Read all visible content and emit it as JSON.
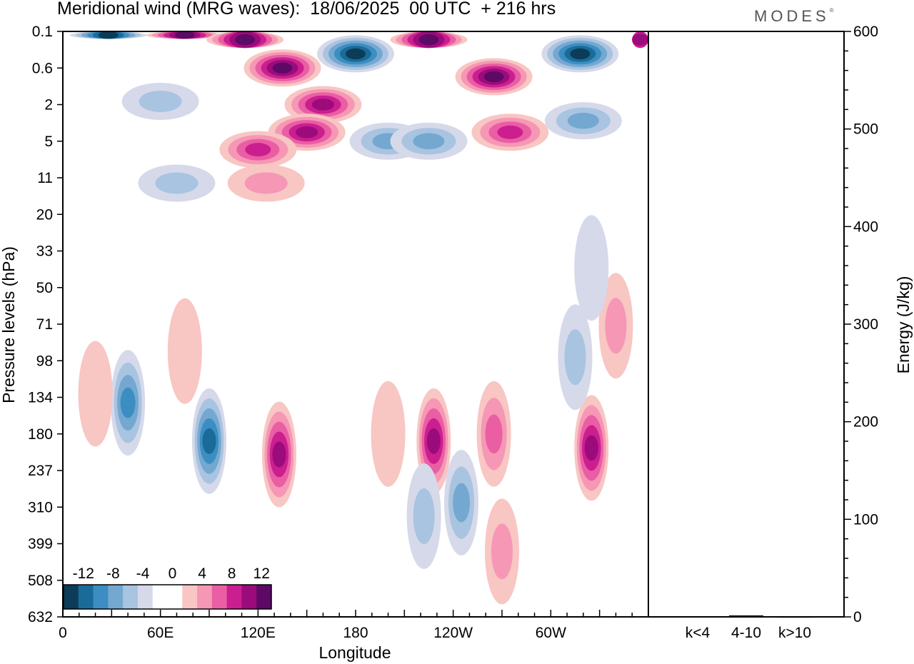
{
  "title": "Meridional wind (MRG waves):  18/06/2025  00 UTC  + 216 hrs",
  "logo": "MODES",
  "chart_data": [
    {
      "type": "heatmap",
      "title": "Meridional wind (MRG waves):  18/06/2025  00 UTC  + 216 hrs",
      "xlabel": "Longitude",
      "ylabel": "Pressure levels (hPa)",
      "x_ticks": [
        "0",
        "60E",
        "120E",
        "180",
        "120W",
        "60W"
      ],
      "x_tick_values": [
        0,
        60,
        120,
        180,
        240,
        300
      ],
      "xlim": [
        0,
        360
      ],
      "y_ticks": [
        "0.1",
        "0.6",
        "2",
        "5",
        "11",
        "20",
        "33",
        "50",
        "71",
        "98",
        "134",
        "180",
        "237",
        "310",
        "399",
        "508",
        "632"
      ],
      "y_scale": "log",
      "colorbar_labels": [
        "-12",
        "-8",
        "-4",
        "0",
        "4",
        "8",
        "12"
      ],
      "colorbar_colors": [
        "#0c3c57",
        "#1b6b99",
        "#3c8ec2",
        "#75a8d0",
        "#a8c4e0",
        "#d6d9ea",
        "#ffffff",
        "#ffffff",
        "#f8c6c3",
        "#f597b5",
        "#ea5ea4",
        "#cb1f8f",
        "#9c0b7c",
        "#5c0a66"
      ],
      "features": [
        {
          "lon": 28,
          "p": 0.12,
          "sign": -1,
          "amp": 13
        },
        {
          "lon": 75,
          "p": 0.12,
          "sign": 1,
          "amp": 12
        },
        {
          "lon": 112,
          "p": 0.15,
          "sign": 1,
          "amp": 13
        },
        {
          "lon": 135,
          "p": 0.6,
          "sign": 1,
          "amp": 12
        },
        {
          "lon": 180,
          "p": 0.3,
          "sign": -1,
          "amp": 13
        },
        {
          "lon": 225,
          "p": 0.15,
          "sign": 1,
          "amp": 13
        },
        {
          "lon": 265,
          "p": 0.8,
          "sign": 1,
          "amp": 12
        },
        {
          "lon": 318,
          "p": 0.3,
          "sign": -1,
          "amp": 13
        },
        {
          "lon": 355,
          "p": 0.15,
          "sign": 1,
          "amp": 10
        },
        {
          "lon": 60,
          "p": 1.8,
          "sign": -1,
          "amp": 5
        },
        {
          "lon": 160,
          "p": 2,
          "sign": 1,
          "amp": 10
        },
        {
          "lon": 150,
          "p": 4,
          "sign": 1,
          "amp": 10
        },
        {
          "lon": 120,
          "p": 6,
          "sign": 1,
          "amp": 8
        },
        {
          "lon": 200,
          "p": 5,
          "sign": -1,
          "amp": 6
        },
        {
          "lon": 225,
          "p": 5,
          "sign": -1,
          "amp": 6
        },
        {
          "lon": 275,
          "p": 4,
          "sign": 1,
          "amp": 9
        },
        {
          "lon": 320,
          "p": 3,
          "sign": -1,
          "amp": 7
        },
        {
          "lon": 70,
          "p": 12,
          "sign": -1,
          "amp": 5
        },
        {
          "lon": 125,
          "p": 12,
          "sign": 1,
          "amp": 5
        },
        {
          "lon": 40,
          "p": 140,
          "sign": -1,
          "amp": 9
        },
        {
          "lon": 90,
          "p": 190,
          "sign": -1,
          "amp": 10
        },
        {
          "lon": 133,
          "p": 210,
          "sign": 1,
          "amp": 10
        },
        {
          "lon": 228,
          "p": 190,
          "sign": 1,
          "amp": 10
        },
        {
          "lon": 245,
          "p": 300,
          "sign": -1,
          "amp": 7
        },
        {
          "lon": 265,
          "p": 180,
          "sign": 1,
          "amp": 6
        },
        {
          "lon": 325,
          "p": 200,
          "sign": 1,
          "amp": 10
        },
        {
          "lon": 315,
          "p": 95,
          "sign": -1,
          "amp": 4
        },
        {
          "lon": 340,
          "p": 72,
          "sign": 1,
          "amp": 5
        },
        {
          "lon": 20,
          "p": 130,
          "sign": 1,
          "amp": 3
        },
        {
          "lon": 75,
          "p": 90,
          "sign": 1,
          "amp": 3
        },
        {
          "lon": 325,
          "p": 40,
          "sign": -1,
          "amp": 3
        },
        {
          "lon": 270,
          "p": 420,
          "sign": 1,
          "amp": 5
        },
        {
          "lon": 222,
          "p": 330,
          "sign": -1,
          "amp": 5
        },
        {
          "lon": 200,
          "p": 180,
          "sign": 1,
          "amp": 3
        }
      ]
    },
    {
      "type": "bar",
      "categories": [
        "k<4",
        "4-10",
        "k>10"
      ],
      "values": [
        0.5,
        1.5,
        0.3
      ],
      "ylabel": "Energy (J/kg)",
      "ylim": [
        0,
        600
      ],
      "y_ticks": [
        "0",
        "100",
        "200",
        "300",
        "400",
        "500",
        "600"
      ]
    }
  ]
}
